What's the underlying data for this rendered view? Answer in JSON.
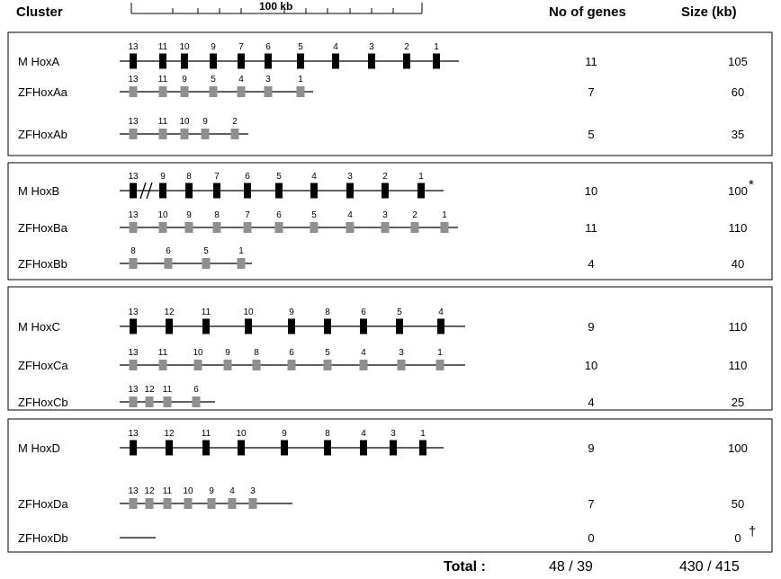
{
  "header": {
    "cluster": "Cluster",
    "scale_label": "100 kb",
    "genes": "No of genes",
    "size": "Size (kb)"
  },
  "colors": {
    "mouse": "#000000",
    "zebrafish": "#8f8f8f"
  },
  "panels": [
    {
      "rows": [
        {
          "label": "M HoxA",
          "type": "mouse",
          "genes": [
            "13",
            "11",
            "10",
            "9",
            "7",
            "6",
            "5",
            "4",
            "3",
            "2",
            "1"
          ],
          "num_genes": "11",
          "size": "105"
        },
        {
          "label": "ZFHoxAa",
          "type": "zebrafish",
          "genes": [
            "13",
            "11",
            "9",
            "5",
            "4",
            "3",
            "1"
          ],
          "num_genes": "7",
          "size": "60"
        },
        {
          "label": "ZFHoxAb",
          "type": "zebrafish",
          "genes": [
            "13",
            "11",
            "10",
            "9",
            "2"
          ],
          "num_genes": "5",
          "size": "35"
        }
      ]
    },
    {
      "rows": [
        {
          "label": "M HoxB",
          "type": "mouse",
          "genes": [
            "13",
            "9",
            "8",
            "7",
            "6",
            "5",
            "4",
            "3",
            "2",
            "1"
          ],
          "num_genes": "10",
          "size": "100",
          "size_mark": "*",
          "break_after_first": true
        },
        {
          "label": "ZFHoxBa",
          "type": "zebrafish",
          "genes": [
            "13",
            "10",
            "9",
            "8",
            "7",
            "6",
            "5",
            "4",
            "3",
            "2",
            "1"
          ],
          "num_genes": "11",
          "size": "110"
        },
        {
          "label": "ZFHoxBb",
          "type": "zebrafish",
          "genes": [
            "8",
            "6",
            "5",
            "1"
          ],
          "num_genes": "4",
          "size": "40"
        }
      ]
    },
    {
      "rows": [
        {
          "label": "M HoxC",
          "type": "mouse",
          "genes": [
            "13",
            "12",
            "11",
            "10",
            "9",
            "8",
            "6",
            "5",
            "4"
          ],
          "num_genes": "9",
          "size": "110"
        },
        {
          "label": "ZFHoxCa",
          "type": "zebrafish",
          "genes": [
            "13",
            "11",
            "10",
            "9",
            "8",
            "6",
            "5",
            "4",
            "3",
            "1"
          ],
          "num_genes": "10",
          "size": "110"
        },
        {
          "label": "ZFHoxCb",
          "type": "zebrafish",
          "genes": [
            "13",
            "12",
            "11",
            "6"
          ],
          "num_genes": "4",
          "size": "25"
        }
      ]
    },
    {
      "rows": [
        {
          "label": "M HoxD",
          "type": "mouse",
          "genes": [
            "13",
            "12",
            "11",
            "10",
            "9",
            "8",
            "4",
            "3",
            "1"
          ],
          "num_genes": "9",
          "size": "100"
        },
        {
          "label": "ZFHoxDa",
          "type": "zebrafish",
          "genes": [
            "13",
            "12",
            "11",
            "10",
            "9",
            "4",
            "3"
          ],
          "num_genes": "7",
          "size": "50"
        },
        {
          "label": "ZFHoxDb",
          "type": "zebrafish",
          "genes": [],
          "num_genes": "0",
          "size": "0",
          "size_mark": "†"
        }
      ]
    }
  ],
  "total": {
    "label": "Total :",
    "genes": "48 / 39",
    "size": "430 / 415"
  }
}
